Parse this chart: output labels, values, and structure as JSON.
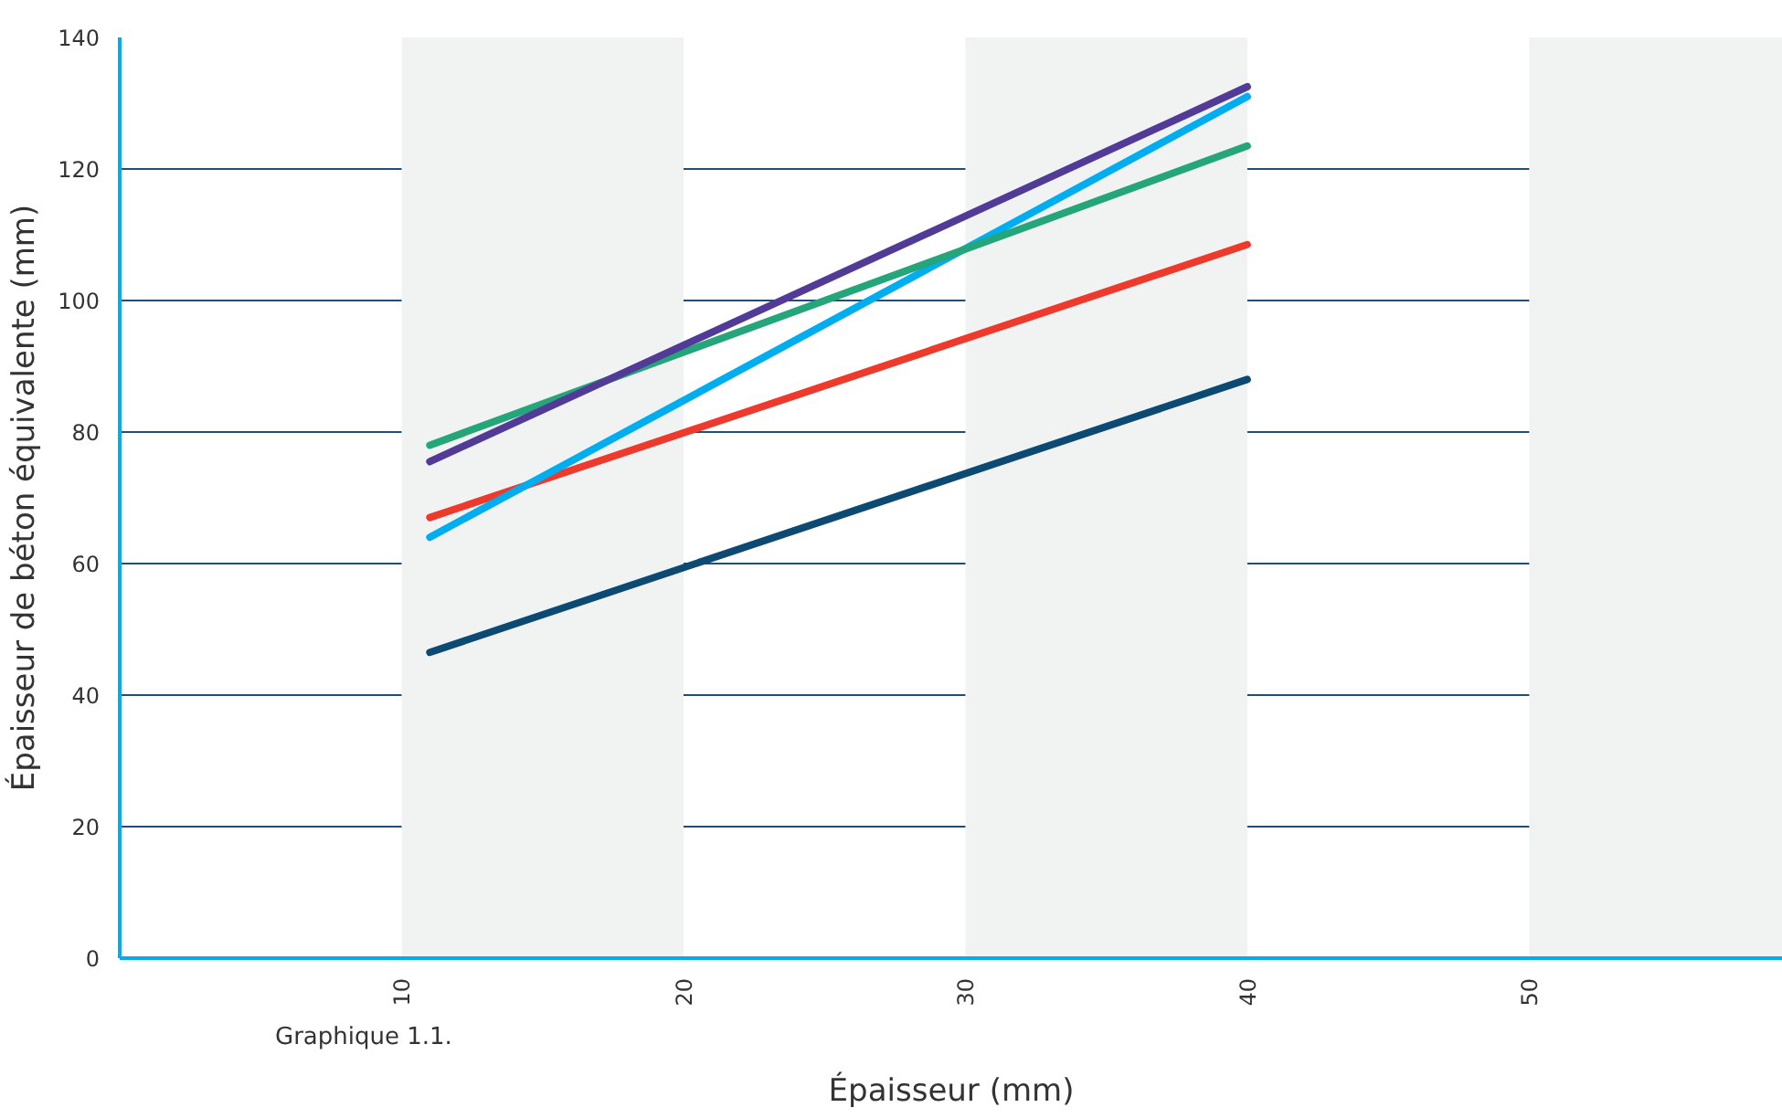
{
  "chart_data": {
    "type": "line",
    "xlabel": "Épaisseur (mm)",
    "ylabel": "Épaisseur de béton équivalente (mm)",
    "annotations": [
      "Graphique 1.1."
    ],
    "xlim": [
      0,
      59
    ],
    "ylim": [
      0,
      140
    ],
    "xticks": [
      10,
      20,
      30,
      40,
      50
    ],
    "yticks": [
      0,
      20,
      40,
      60,
      80,
      100,
      120,
      140
    ],
    "grid": "y",
    "x": [
      11,
      40
    ],
    "series": [
      {
        "color": "#0d4a73",
        "values": [
          46.5,
          88
        ]
      },
      {
        "color": "#ee3a2c",
        "values": [
          67,
          108.5
        ]
      },
      {
        "color": "#00aeef",
        "values": [
          64,
          131
        ]
      },
      {
        "color": "#25a57a",
        "values": [
          78,
          123.5
        ]
      },
      {
        "color": "#523a97",
        "values": [
          75.5,
          132.5
        ]
      }
    ],
    "bands": [
      {
        "axis": "x",
        "from": 10,
        "to": 20,
        "color": "#f1f3f3"
      },
      {
        "axis": "x",
        "from": 30,
        "to": 40,
        "color": "#f1f3f3"
      },
      {
        "axis": "x",
        "from": 50,
        "to": 60,
        "color": "#f1f3f3"
      }
    ]
  }
}
